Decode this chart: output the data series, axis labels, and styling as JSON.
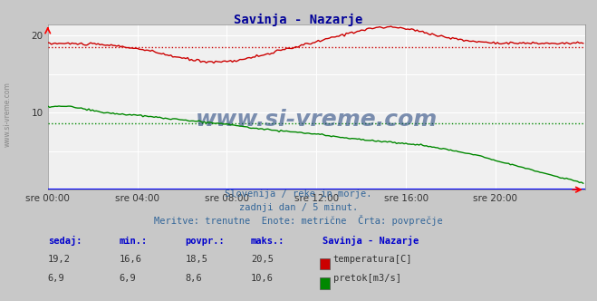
{
  "title": "Savinja - Nazarje",
  "bg_color": "#c8c8c8",
  "plot_bg_color": "#f0f0f0",
  "grid_color_major": "#ffffff",
  "grid_color_minor": "#ffb0b0",
  "subtitle_lines": [
    "Slovenija / reke in morje.",
    "zadnji dan / 5 minut.",
    "Meritve: trenutne  Enote: metrične  Črta: povprečje"
  ],
  "xlabel_ticks": [
    "sre 00:00",
    "sre 04:00",
    "sre 08:00",
    "sre 12:00",
    "sre 16:00",
    "sre 20:00"
  ],
  "xlim": [
    0,
    288
  ],
  "ylim": [
    0,
    21.5
  ],
  "ytick_vals": [
    10,
    20
  ],
  "temp_color": "#cc0000",
  "flow_color": "#008800",
  "avg_temp": 18.5,
  "avg_flow": 8.6,
  "temp_min": 16.6,
  "temp_max": 20.5,
  "temp_current": 19.2,
  "flow_min": 6.9,
  "flow_max": 10.6,
  "flow_current": 6.9,
  "flow_avg": 8.6,
  "watermark": "www.si-vreme.com",
  "side_label": "www.si-vreme.com",
  "title_color": "#000099",
  "text_color": "#336699",
  "label_color": "#0000cc"
}
